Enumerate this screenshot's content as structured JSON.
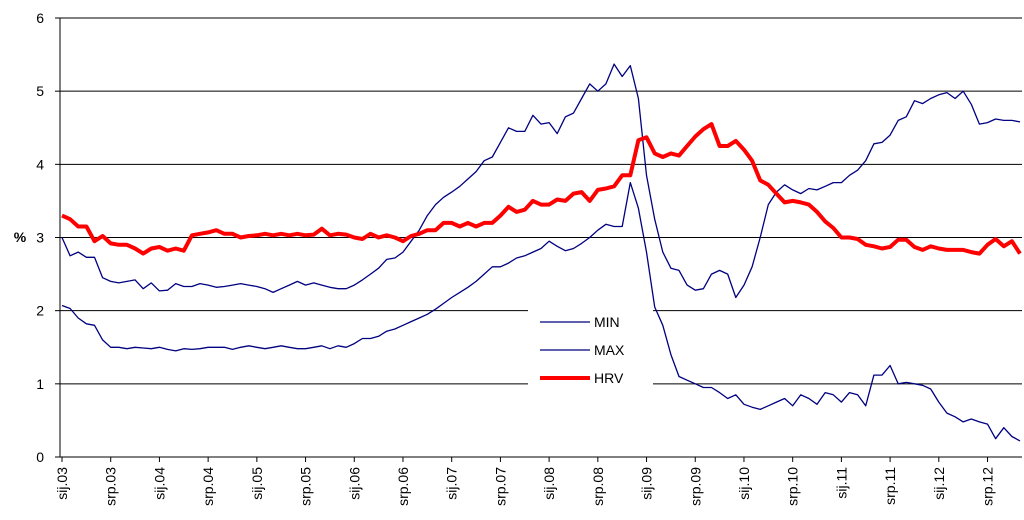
{
  "chart_data": {
    "type": "line",
    "y_label": "%",
    "ylim": [
      0,
      6
    ],
    "yticks": [
      0,
      1,
      2,
      3,
      4,
      5,
      6
    ],
    "grid": true,
    "legend": "center",
    "categories": [
      "sij.03",
      null,
      null,
      null,
      null,
      null,
      "srp.03",
      null,
      null,
      null,
      null,
      null,
      "sij.04",
      null,
      null,
      null,
      null,
      null,
      "srp.04",
      null,
      null,
      null,
      null,
      null,
      "sij.05",
      null,
      null,
      null,
      null,
      null,
      "srp.05",
      null,
      null,
      null,
      null,
      null,
      "sij.06",
      null,
      null,
      null,
      null,
      null,
      "srp.06",
      null,
      null,
      null,
      null,
      null,
      "sij.07",
      null,
      null,
      null,
      null,
      null,
      "srp.07",
      null,
      null,
      null,
      null,
      null,
      "sij.08",
      null,
      null,
      null,
      null,
      null,
      "srp.08",
      null,
      null,
      null,
      null,
      null,
      "sij.09",
      null,
      null,
      null,
      null,
      null,
      "srp.09",
      null,
      null,
      null,
      null,
      null,
      "sij.10",
      null,
      null,
      null,
      null,
      null,
      "srp.10",
      null,
      null,
      null,
      null,
      null,
      "sij.11",
      null,
      null,
      null,
      null,
      null,
      "srp.11",
      null,
      null,
      null,
      null,
      null,
      "sij.12",
      null,
      null,
      null,
      null,
      null,
      "srp.12",
      null,
      null,
      null,
      null
    ],
    "series": [
      {
        "name": "MIN",
        "color": "#000080",
        "width": 1.3,
        "values": [
          2.07,
          2.03,
          1.9,
          1.82,
          1.8,
          1.6,
          1.5,
          1.5,
          1.48,
          1.5,
          1.49,
          1.48,
          1.5,
          1.47,
          1.45,
          1.48,
          1.47,
          1.48,
          1.5,
          1.5,
          1.5,
          1.47,
          1.5,
          1.52,
          1.5,
          1.48,
          1.5,
          1.52,
          1.5,
          1.48,
          1.48,
          1.5,
          1.52,
          1.48,
          1.52,
          1.5,
          1.55,
          1.62,
          1.62,
          1.65,
          1.72,
          1.75,
          1.8,
          1.85,
          1.9,
          1.95,
          2.02,
          2.1,
          2.18,
          2.25,
          2.32,
          2.4,
          2.5,
          2.6,
          2.6,
          2.65,
          2.72,
          2.75,
          2.8,
          2.85,
          2.95,
          2.88,
          2.82,
          2.85,
          2.92,
          3.0,
          3.1,
          3.18,
          3.15,
          3.15,
          3.75,
          3.4,
          2.8,
          2.05,
          1.8,
          1.4,
          1.1,
          1.05,
          1.0,
          0.95,
          0.95,
          0.88,
          0.8,
          0.85,
          0.72,
          0.68,
          0.65,
          0.7,
          0.75,
          0.8,
          0.7,
          0.85,
          0.8,
          0.72,
          0.88,
          0.85,
          0.75,
          0.88,
          0.85,
          0.7,
          1.12,
          1.12,
          1.25,
          1.0,
          1.02,
          1.0,
          0.98,
          0.93,
          0.75,
          0.6,
          0.55,
          0.48,
          0.52,
          0.48,
          0.45,
          0.25,
          0.4,
          0.28,
          0.22
        ]
      },
      {
        "name": "MAX",
        "color": "#000080",
        "width": 1.3,
        "values": [
          3.0,
          2.75,
          2.8,
          2.73,
          2.73,
          2.45,
          2.4,
          2.38,
          2.4,
          2.42,
          2.3,
          2.38,
          2.27,
          2.28,
          2.37,
          2.33,
          2.33,
          2.37,
          2.35,
          2.32,
          2.33,
          2.35,
          2.37,
          2.35,
          2.33,
          2.3,
          2.25,
          2.3,
          2.35,
          2.4,
          2.35,
          2.38,
          2.35,
          2.32,
          2.3,
          2.3,
          2.35,
          2.42,
          2.5,
          2.58,
          2.7,
          2.72,
          2.8,
          2.95,
          3.1,
          3.3,
          3.45,
          3.55,
          3.62,
          3.7,
          3.8,
          3.9,
          4.05,
          4.1,
          4.3,
          4.5,
          4.45,
          4.45,
          4.67,
          4.55,
          4.57,
          4.42,
          4.65,
          4.7,
          4.9,
          5.1,
          5.0,
          5.1,
          5.37,
          5.2,
          5.35,
          4.9,
          3.85,
          3.25,
          2.8,
          2.58,
          2.55,
          2.35,
          2.28,
          2.3,
          2.5,
          2.55,
          2.5,
          2.18,
          2.35,
          2.6,
          3.0,
          3.45,
          3.62,
          3.72,
          3.65,
          3.6,
          3.67,
          3.65,
          3.7,
          3.75,
          3.75,
          3.85,
          3.92,
          4.05,
          4.28,
          4.3,
          4.4,
          4.6,
          4.65,
          4.87,
          4.83,
          4.9,
          4.95,
          4.98,
          4.9,
          5.0,
          4.82,
          4.55,
          4.57,
          4.62,
          4.6,
          4.6,
          4.58
        ]
      },
      {
        "name": "HRV",
        "color": "#ff0000",
        "width": 4,
        "values": [
          3.3,
          3.25,
          3.15,
          3.15,
          2.95,
          3.02,
          2.92,
          2.9,
          2.9,
          2.85,
          2.78,
          2.85,
          2.87,
          2.82,
          2.85,
          2.82,
          3.03,
          3.05,
          3.07,
          3.1,
          3.05,
          3.05,
          3.0,
          3.02,
          3.03,
          3.05,
          3.03,
          3.05,
          3.03,
          3.05,
          3.03,
          3.04,
          3.12,
          3.03,
          3.05,
          3.04,
          3.0,
          2.98,
          3.05,
          3.0,
          3.03,
          3.0,
          2.95,
          3.02,
          3.05,
          3.1,
          3.1,
          3.2,
          3.2,
          3.15,
          3.2,
          3.15,
          3.2,
          3.2,
          3.3,
          3.42,
          3.35,
          3.38,
          3.5,
          3.45,
          3.45,
          3.52,
          3.5,
          3.6,
          3.62,
          3.5,
          3.65,
          3.67,
          3.7,
          3.85,
          3.85,
          4.33,
          4.37,
          4.15,
          4.1,
          4.15,
          4.12,
          4.25,
          4.38,
          4.48,
          4.55,
          4.25,
          4.25,
          4.32,
          4.2,
          4.05,
          3.78,
          3.72,
          3.6,
          3.48,
          3.5,
          3.48,
          3.45,
          3.35,
          3.22,
          3.13,
          3.0,
          3.0,
          2.98,
          2.9,
          2.88,
          2.85,
          2.87,
          2.97,
          2.97,
          2.87,
          2.83,
          2.88,
          2.85,
          2.83,
          2.83,
          2.83,
          2.8,
          2.78,
          2.9,
          2.98,
          2.88,
          2.95,
          2.78
        ]
      }
    ]
  }
}
